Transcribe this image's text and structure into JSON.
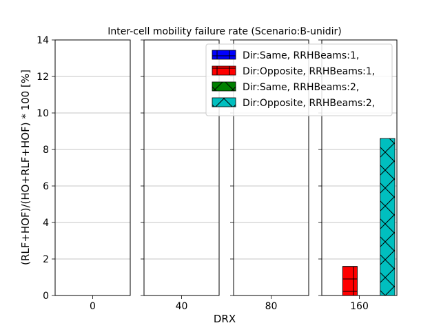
{
  "chart_data": {
    "type": "bar",
    "title": "Inter-cell mobility failure rate (Scenario:B-unidir)",
    "xlabel": "DRX",
    "ylabel": "(RLF+HOF)/(HO+RLF+HOF) * 100 [%]",
    "ylim": [
      0,
      14
    ],
    "yticks": [
      "0",
      "2",
      "4",
      "6",
      "8",
      "10",
      "12",
      "14"
    ],
    "grid": true,
    "legend_placement": "top-right",
    "categories": [
      "0",
      "40",
      "80",
      "160"
    ],
    "series": [
      {
        "name": "Dir:Same, RRHBeams:1,",
        "color": "#0000ff",
        "hatch": "plus",
        "values": [
          0,
          0,
          0,
          0
        ]
      },
      {
        "name": "Dir:Opposite, RRHBeams:1,",
        "color": "#ff0000",
        "hatch": "plus",
        "values": [
          0,
          0,
          0,
          1.6
        ]
      },
      {
        "name": "Dir:Same, RRHBeams:2,",
        "color": "#008000",
        "hatch": "x",
        "values": [
          0,
          0,
          0,
          0
        ]
      },
      {
        "name": "Dir:Opposite, RRHBeams:2,",
        "color": "#00bfbf",
        "hatch": "x",
        "values": [
          0,
          0,
          0,
          8.6
        ]
      }
    ]
  }
}
